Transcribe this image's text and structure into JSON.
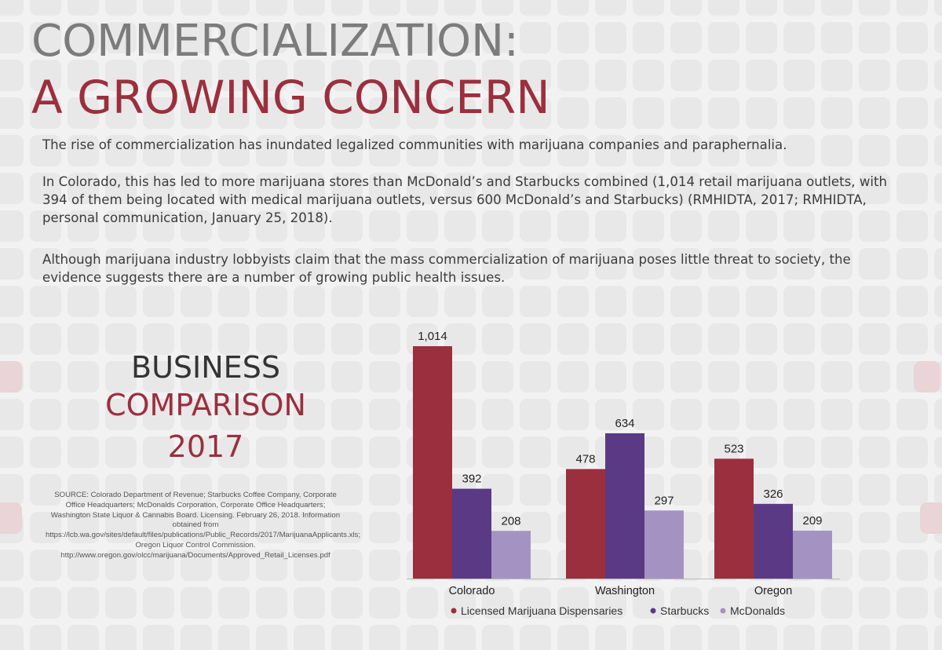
{
  "header": {
    "title_line1": "COMMERCIALIZATION:",
    "title_line2": "A GROWING CONCERN"
  },
  "body": {
    "para1": "The rise of commercialization has inundated legalized communities with marijuana companies and paraphernalia.",
    "para2": "In Colorado, this has led to more marijuana stores than McDonald’s and Starbucks combined (1,014 retail marijuana outlets, with 394 of them being located with medical marijuana outlets, versus 600 McDonald’s and Starbucks) (RMHIDTA, 2017; RMHIDTA, personal communication, January 25, 2018).",
    "para3": "Although marijuana industry lobbyists claim that the mass commercialization of marijuana poses little threat to society, the evidence suggests there are a number of growing public health issues."
  },
  "sidebar": {
    "line1": "BUSINESS",
    "line2": "COMPARISON",
    "line3": "2017",
    "source": "SOURCE: Colorado Department of Revenue; Starbucks Coffee Company, Corporate Office Headquarters; McDonalds Corporation, Corporate Office Headquarters; Washington State Liquor & Cannabis Board. Licensing. February 26, 2018. Information obtained from https://lcb.wa.gov/sites/default/files/publications/Public_Records/2017/MarijuanaApplicants.xls; Oregon Liquor Control Commission. http://www.oregon.gov/olcc/marijuana/Documents/Approved_Retail_Licenses.pdf"
  },
  "colors": {
    "accent": "#9b2f3e",
    "title_gray": "#7c7c7c",
    "dispensaries": "#9b2f3e",
    "starbucks": "#5a3a84",
    "mcdonalds": "#a493c2"
  },
  "chart_data": {
    "type": "bar",
    "categories": [
      "Colorado",
      "Washington",
      "Oregon"
    ],
    "series": [
      {
        "name": "Licensed Marijuana Dispensaries",
        "values": [
          1014,
          478,
          523
        ],
        "labels": [
          "1,014",
          "478",
          "523"
        ],
        "color": "#9b2f3e"
      },
      {
        "name": "Starbucks",
        "values": [
          392,
          634,
          326
        ],
        "labels": [
          "392",
          "634",
          "326"
        ],
        "color": "#5a3a84"
      },
      {
        "name": "McDonalds",
        "values": [
          208,
          297,
          209
        ],
        "labels": [
          "208",
          "297",
          "209"
        ],
        "color": "#a493c2"
      }
    ],
    "ylim": [
      0,
      1014
    ],
    "legend": "bottom",
    "grid": false
  }
}
